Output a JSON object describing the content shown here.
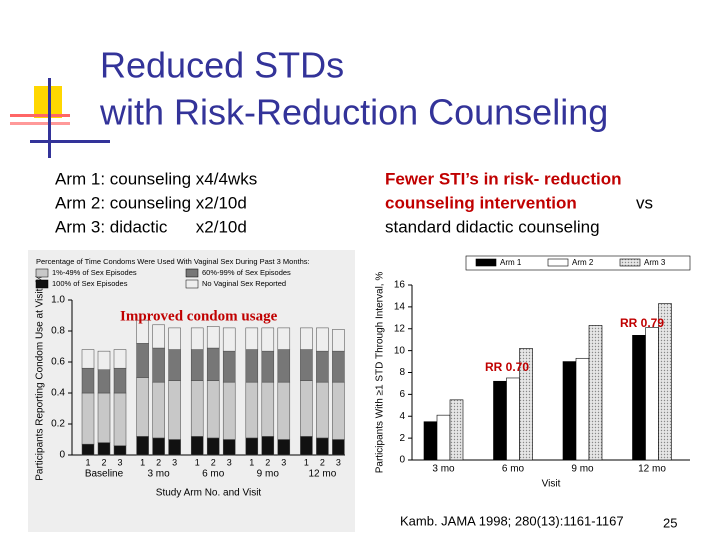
{
  "title": [
    "Reduced STDs",
    "with Risk-Reduction Counseling"
  ],
  "left_text": [
    "Arm 1: counseling x4/4wks",
    "Arm 2: counseling x2/10d",
    "Arm 3: didactic      x2/10d"
  ],
  "right_text": [
    "Fewer STI’s in risk- reduction",
    "counseling intervention",
    "vs",
    "standard didactic counseling"
  ],
  "citation": "Kamb. JAMA 1998; 280(13):1161-1167",
  "page_number": "25",
  "chart_data": [
    {
      "type": "stacked_bar",
      "legend_title": "Percentage of Time Condoms Were Used With Vaginal Sex During Past 3 Months:",
      "y_label": "Participants Reporting Condom Use at Visit, %",
      "x_label": "Study Arm No. and Visit",
      "annotation": "Improved condom usage",
      "categories": [
        "1",
        "2",
        "3",
        "1",
        "2",
        "3",
        "1",
        "2",
        "3",
        "1",
        "2",
        "3",
        "1",
        "2",
        "3"
      ],
      "groups": [
        "Baseline",
        "3 mo",
        "6 mo",
        "9 mo",
        "12 mo"
      ],
      "ylim": [
        0,
        1
      ],
      "yticks": [
        0,
        0.2,
        0.4,
        0.6,
        0.8,
        {
          "value": 1,
          "label": "1.0"
        }
      ],
      "series": [
        {
          "name": "100% of Sex Episodes",
          "color": "#111111",
          "values": [
            0.07,
            0.08,
            0.06,
            0.12,
            0.11,
            0.1,
            0.12,
            0.11,
            0.1,
            0.11,
            0.12,
            0.1,
            0.12,
            0.11,
            0.1
          ]
        },
        {
          "name": "1%-49% of Sex Episodes",
          "color": "#c8c8c8",
          "values": [
            0.33,
            0.32,
            0.34,
            0.38,
            0.36,
            0.38,
            0.36,
            0.37,
            0.37,
            0.36,
            0.35,
            0.37,
            0.36,
            0.36,
            0.37
          ]
        },
        {
          "name": "60%-99% of Sex Episodes",
          "color": "#777777",
          "values": [
            0.16,
            0.15,
            0.16,
            0.22,
            0.22,
            0.2,
            0.2,
            0.21,
            0.2,
            0.21,
            0.2,
            0.21,
            0.2,
            0.2,
            0.2
          ]
        },
        {
          "name": "No Vaginal Sex Reported",
          "color": "#eeeeee",
          "values": [
            0.12,
            0.12,
            0.12,
            0.15,
            0.15,
            0.14,
            0.14,
            0.14,
            0.15,
            0.14,
            0.15,
            0.14,
            0.14,
            0.15,
            0.14
          ]
        }
      ]
    },
    {
      "type": "bar",
      "y_label": "Participants With ≥1 STD Through Interval, %",
      "x_label": "Visit",
      "annotations": [
        "RR 0.79",
        "RR 0.70"
      ],
      "categories": [
        "3 mo",
        "6 mo",
        "9 mo",
        "12 mo"
      ],
      "ylim": [
        0,
        16
      ],
      "yticks": [
        0,
        2,
        4,
        6,
        8,
        10,
        12,
        14,
        16
      ],
      "series": [
        {
          "name": "Arm 1",
          "color": "#000000",
          "values": [
            3.5,
            7.2,
            9,
            11.4
          ]
        },
        {
          "name": "Arm 2",
          "color": "#ffffff",
          "values": [
            4.1,
            7.5,
            9.3,
            12.1
          ]
        },
        {
          "name": "Arm 3",
          "color": "#d0d0d0",
          "values": [
            5.5,
            10.2,
            12.3,
            14.3
          ]
        }
      ]
    }
  ]
}
